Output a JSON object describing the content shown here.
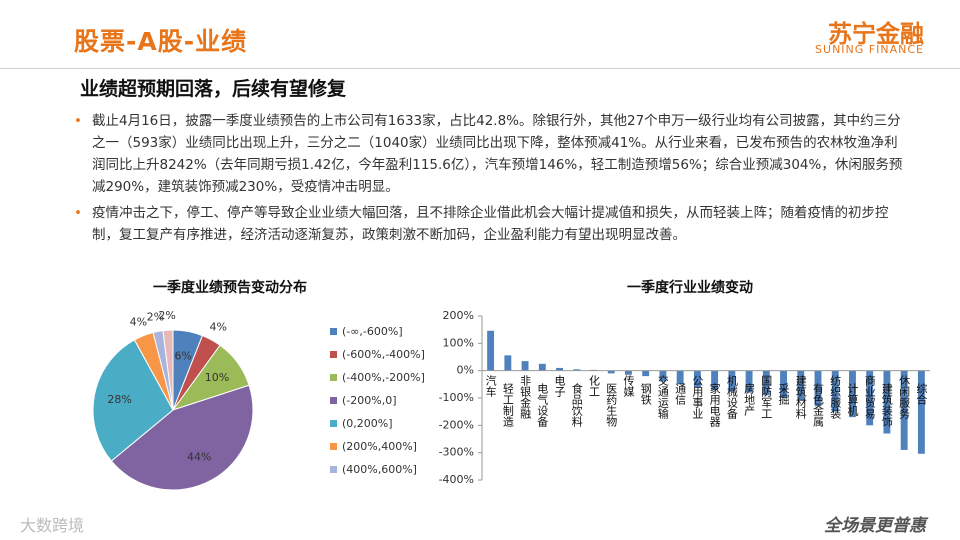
{
  "header": {
    "title": "股票-A股-业绩",
    "logo": "苏宁金融",
    "logo_en": "SUNING FINANCE"
  },
  "subtitle": "业绩超预期回落，后续有望修复",
  "bullets": [
    "截止4月16日，披露一季度业绩预告的上市公司有1633家，占比42.8%。除银行外，其他27个申万一级行业均有公司披露，其中约三分之一（593家）业绩同比出现上升，三分之二（1040家）业绩同比出现下降，整体预减41%。从行业来看，已发布预告的农林牧渔净利润同比上升8242%（去年同期亏损1.42亿，今年盈利115.6亿），汽车预增146%，轻工制造预增56%；综合业预减304%，休闲服务预减290%，建筑装饰预减230%，受疫情冲击明显。",
    "疫情冲击之下，停工、停产等导致企业业绩大幅回落，且不排除企业借此机会大幅计提减值和损失，从而轻装上阵；随着疫情的初步控制，复工复产有序推进，经济活动逐渐复苏，政策刺激不断加码，企业盈利能力有望出现明显改善。"
  ],
  "chart_data": [
    {
      "type": "pie",
      "title": "一季度业绩预告变动分布",
      "categories": [
        "(-∞,-600%]",
        "(-600%,-400%]",
        "(-400%,-200%]",
        "(-200%,0]",
        "(0,200%]",
        "(200%,400%]",
        "(400%,600%]",
        null
      ],
      "values": [
        6,
        4,
        10,
        44,
        28,
        4,
        2,
        2
      ],
      "value_labels": [
        "6%",
        "4%",
        "10%",
        "44%",
        "28%",
        "4%",
        "2%",
        "2%"
      ],
      "colors": [
        "#4f81bd",
        "#c0504d",
        "#9bbb59",
        "#8064a2",
        "#4bacc6",
        "#f79646",
        "#a9b4dc",
        "#e6b9b8"
      ]
    },
    {
      "type": "bar",
      "title": "一季度行业业绩变动",
      "categories": [
        "汽车",
        "轻工制造",
        "非银金融",
        "电气设备",
        "电子",
        "食品饮料",
        "化工",
        "医药生物",
        "传媒",
        "钢铁",
        "交通运输",
        "通信",
        "公用事业",
        "家用电器",
        "机械设备",
        "房地产",
        "国防军工",
        "采掘",
        "建筑材料",
        "有色金属",
        "纺织服装",
        "计算机",
        "商业贸易",
        "建筑装饰",
        "休闲服务",
        "综合"
      ],
      "values": [
        146,
        56,
        35,
        25,
        10,
        5,
        3,
        -10,
        -15,
        -20,
        -40,
        -50,
        -60,
        -70,
        -75,
        -80,
        -90,
        -100,
        -110,
        -130,
        -150,
        -170,
        -200,
        -230,
        -290,
        -304
      ],
      "color": "#4f81bd",
      "grid": false,
      "ylim": [
        -400,
        200
      ],
      "yticks": [
        {
          "value": 200,
          "label": "200%"
        },
        {
          "value": 100,
          "label": "100%"
        },
        {
          "value": 0,
          "label": "0%"
        },
        {
          "value": -100,
          "label": "-100%"
        },
        {
          "value": -200,
          "label": "-200%"
        },
        {
          "value": -300,
          "label": "-300%"
        },
        {
          "value": -400,
          "label": "-400%"
        }
      ]
    }
  ],
  "footer": {
    "watermark": "大数跨境",
    "slogan": "全场景更普惠"
  }
}
